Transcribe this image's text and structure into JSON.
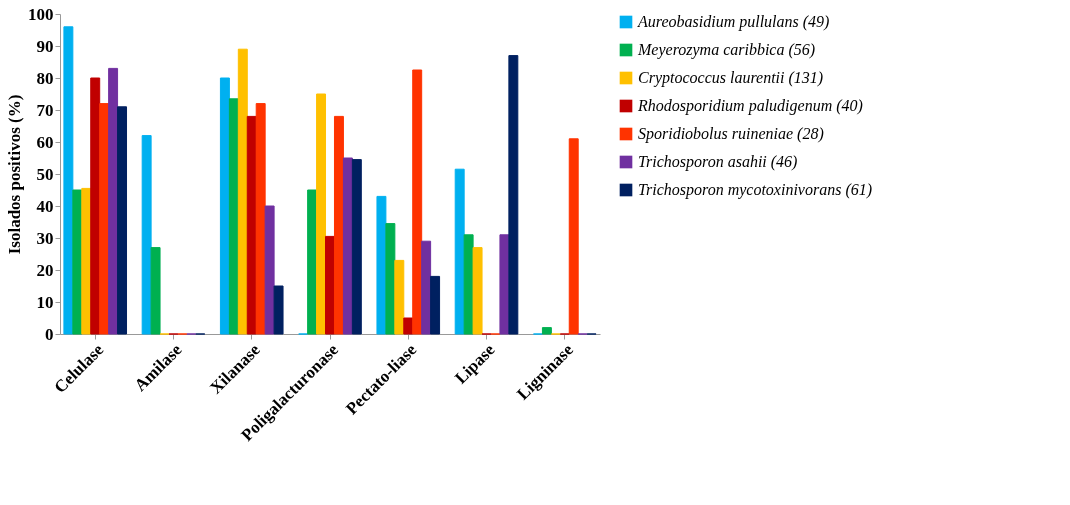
{
  "chart_data": {
    "type": "bar",
    "ylabel": "Isolados positivos (%)",
    "categories": [
      "Celulase",
      "Amilase",
      "Xilanase",
      "Poligalacturonase",
      "Pectato-liase",
      "Lipase",
      "Ligninase"
    ],
    "ylim": [
      0,
      100
    ],
    "yticks": [
      0,
      10,
      20,
      30,
      40,
      50,
      60,
      70,
      80,
      90,
      100
    ],
    "grid": false,
    "legend": "right",
    "series": [
      {
        "name": "Aureobasidium pullulans (49)",
        "color": "#00b0f0",
        "values": [
          96,
          62,
          80,
          0,
          43,
          51.5,
          0
        ]
      },
      {
        "name": "Meyerozyma caribbica (56)",
        "color": "#00b050",
        "values": [
          45,
          27,
          73.5,
          45,
          34.5,
          31,
          2
        ]
      },
      {
        "name": "Cryptococcus laurentii (131)",
        "color": "#ffc000",
        "values": [
          45.5,
          0,
          89,
          75,
          23,
          27,
          0
        ]
      },
      {
        "name": "Rhodosporidium paludigenum (40)",
        "color": "#c00000",
        "values": [
          80,
          0,
          68,
          30.5,
          5,
          0,
          0
        ]
      },
      {
        "name": "Sporidiobolus ruineniae (28)",
        "color": "#ff3300",
        "values": [
          72,
          0,
          72,
          68,
          82.5,
          0,
          61
        ]
      },
      {
        "name": "Trichosporon asahii (46)",
        "color": "#7030a0",
        "values": [
          83,
          0,
          40,
          55,
          29,
          31,
          0
        ]
      },
      {
        "name": "Trichosporon mycotoxinivorans (61)",
        "color": "#002060",
        "values": [
          71,
          0,
          15,
          54.5,
          18,
          87,
          0
        ]
      }
    ]
  }
}
